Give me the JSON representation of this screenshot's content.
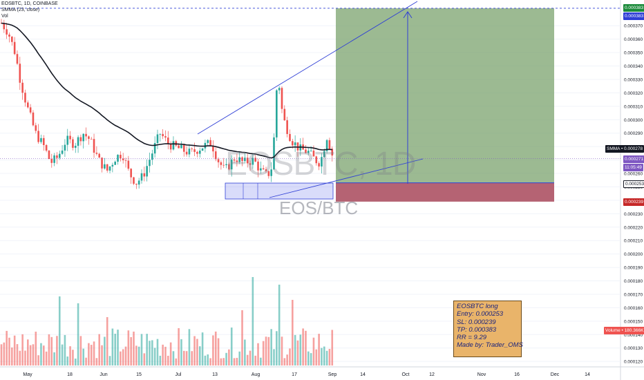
{
  "header": {
    "line1": "EOSBTC, 1D, COINBASE",
    "line2": "SMMA (23, close)",
    "line3": "Vol"
  },
  "watermark": {
    "symbol": "EOSBTC, 1D",
    "description": "EOS/BTC"
  },
  "note": {
    "lines": [
      "EOSBTC long",
      "Entry: 0.000253",
      "SL: 0.000239",
      "TP: 0.000383",
      "RR = 9.29",
      "Made by: Trader_OMS"
    ]
  },
  "price_axis": {
    "ticks": [
      "0.000370",
      "0.000360",
      "0.000350",
      "0.000340",
      "0.000330",
      "0.000320",
      "0.000310",
      "0.000300",
      "0.000290",
      "0.000280",
      "0.000270",
      "0.000260",
      "0.000250",
      "0.000240",
      "0.000230",
      "0.000220",
      "0.000210",
      "0.000200",
      "0.000190",
      "0.000180",
      "0.000170",
      "0.000160",
      "0.000150",
      "0.000140",
      "0.000130",
      "0.000120"
    ],
    "tick_values": [
      0.00037,
      0.00036,
      0.00035,
      0.00034,
      0.00033,
      0.00032,
      0.00031,
      0.0003,
      0.00029,
      0.00028,
      0.00027,
      0.00026,
      0.00025,
      0.00024,
      0.00023,
      0.00022,
      0.00021,
      0.0002,
      0.00019,
      0.00018,
      0.00017,
      0.00016,
      0.00015,
      0.00014,
      0.00013,
      0.00012
    ]
  },
  "labels": {
    "tp_top": "0.000383",
    "tp": "0.000383",
    "smma": "SMMA • 0.000278",
    "last_price": "0.000271",
    "countdown": "11:05:49",
    "entry": "0.000253",
    "sl": "0.000239",
    "volume": "Volume • 180.366K"
  },
  "time_axis": {
    "ticks": [
      "May",
      "18",
      "Jun",
      "15",
      "Jul",
      "13",
      "Aug",
      "17",
      "Sep",
      "14",
      "Oct",
      "12",
      "Nov",
      "16",
      "Dec",
      "14"
    ]
  },
  "colors": {
    "up": "#26a69a",
    "down": "#ef5350",
    "tp_zone": "#7ba36d",
    "sl_zone": "#a8485a",
    "drawing": "#2f3fd6",
    "smma": "#131722",
    "note_bg": "#e9b46a"
  },
  "chart_data": {
    "type": "candlestick",
    "symbol": "EOSBTC",
    "interval": "1D",
    "exchange": "COINBASE",
    "indicator": "SMMA (23, close)",
    "smma_last": 0.000278,
    "last_close": 0.000271,
    "trade": {
      "side": "long",
      "entry": 0.000253,
      "stop_loss": 0.000239,
      "take_profit": 0.000383,
      "rr": 9.29
    },
    "volume_last": "180.366K",
    "y_range": [
      0.000117,
      0.000384
    ]
  }
}
